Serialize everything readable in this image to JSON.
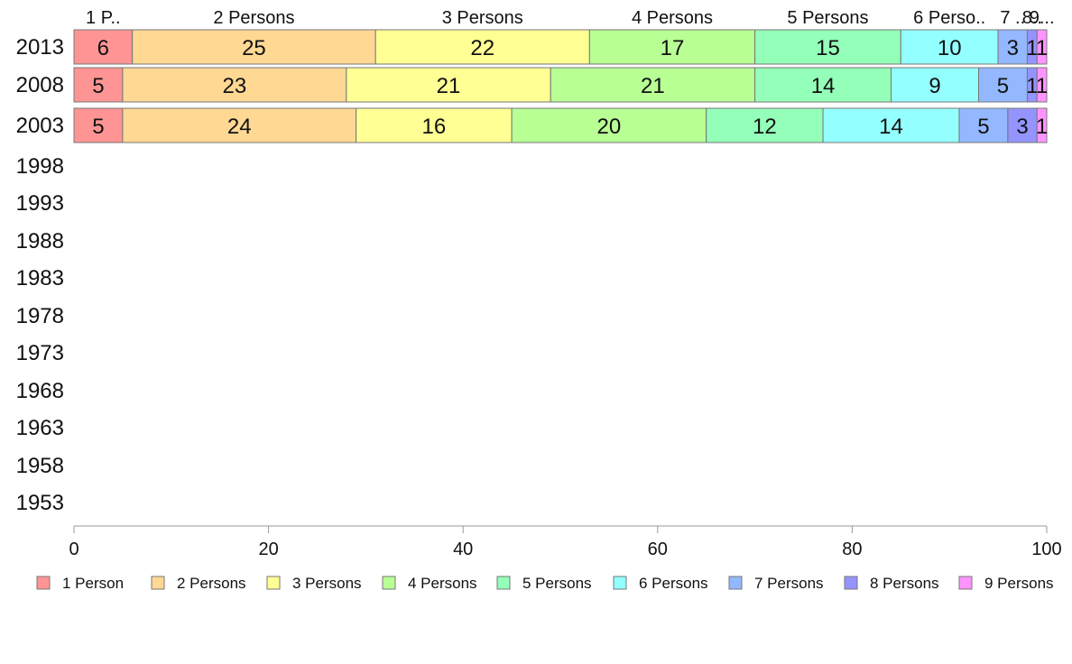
{
  "chart_data": {
    "type": "bar",
    "orientation": "horizontal",
    "stacked": true,
    "title": "",
    "xlabel": "",
    "ylabel": "",
    "xlim": [
      0,
      100
    ],
    "x_ticks": [
      "0",
      "20",
      "40",
      "60",
      "80",
      "100"
    ],
    "categories": [
      "2013",
      "2008",
      "2003",
      "1998",
      "1993",
      "1988",
      "1983",
      "1978",
      "1973",
      "1968",
      "1963",
      "1958",
      "1953"
    ],
    "grid": false,
    "legend_position": "bottom",
    "series": [
      {
        "name": "1 Person",
        "color": "#ff9494",
        "values": [
          6,
          5,
          5,
          null,
          null,
          null,
          null,
          null,
          null,
          null,
          null,
          null,
          null
        ]
      },
      {
        "name": "2 Persons",
        "color": "#ffd894",
        "values": [
          25,
          23,
          24,
          null,
          null,
          null,
          null,
          null,
          null,
          null,
          null,
          null,
          null
        ]
      },
      {
        "name": "3 Persons",
        "color": "#ffff94",
        "values": [
          22,
          21,
          16,
          null,
          null,
          null,
          null,
          null,
          null,
          null,
          null,
          null,
          null
        ]
      },
      {
        "name": "4 Persons",
        "color": "#b8ff94",
        "values": [
          17,
          21,
          20,
          null,
          null,
          null,
          null,
          null,
          null,
          null,
          null,
          null,
          null
        ]
      },
      {
        "name": "5 Persons",
        "color": "#94ffb8",
        "values": [
          15,
          14,
          12,
          null,
          null,
          null,
          null,
          null,
          null,
          null,
          null,
          null,
          null
        ]
      },
      {
        "name": "6 Persons",
        "color": "#94ffff",
        "values": [
          10,
          9,
          14,
          null,
          null,
          null,
          null,
          null,
          null,
          null,
          null,
          null,
          null
        ]
      },
      {
        "name": "7 Persons",
        "color": "#94b8ff",
        "values": [
          3,
          5,
          5,
          null,
          null,
          null,
          null,
          null,
          null,
          null,
          null,
          null,
          null
        ]
      },
      {
        "name": "8 Persons",
        "color": "#9494ff",
        "values": [
          1,
          1,
          3,
          null,
          null,
          null,
          null,
          null,
          null,
          null,
          null,
          null,
          null
        ]
      },
      {
        "name": "9 Persons",
        "color": "#ff94ff",
        "values": [
          1,
          1,
          1,
          null,
          null,
          null,
          null,
          null,
          null,
          null,
          null,
          null,
          null
        ]
      }
    ],
    "header_labels": [
      "1 P..",
      "2 Persons",
      "3 Persons",
      "4 Persons",
      "5 Persons",
      "6 Perso..",
      "7 ..",
      "8..",
      "9..."
    ]
  }
}
